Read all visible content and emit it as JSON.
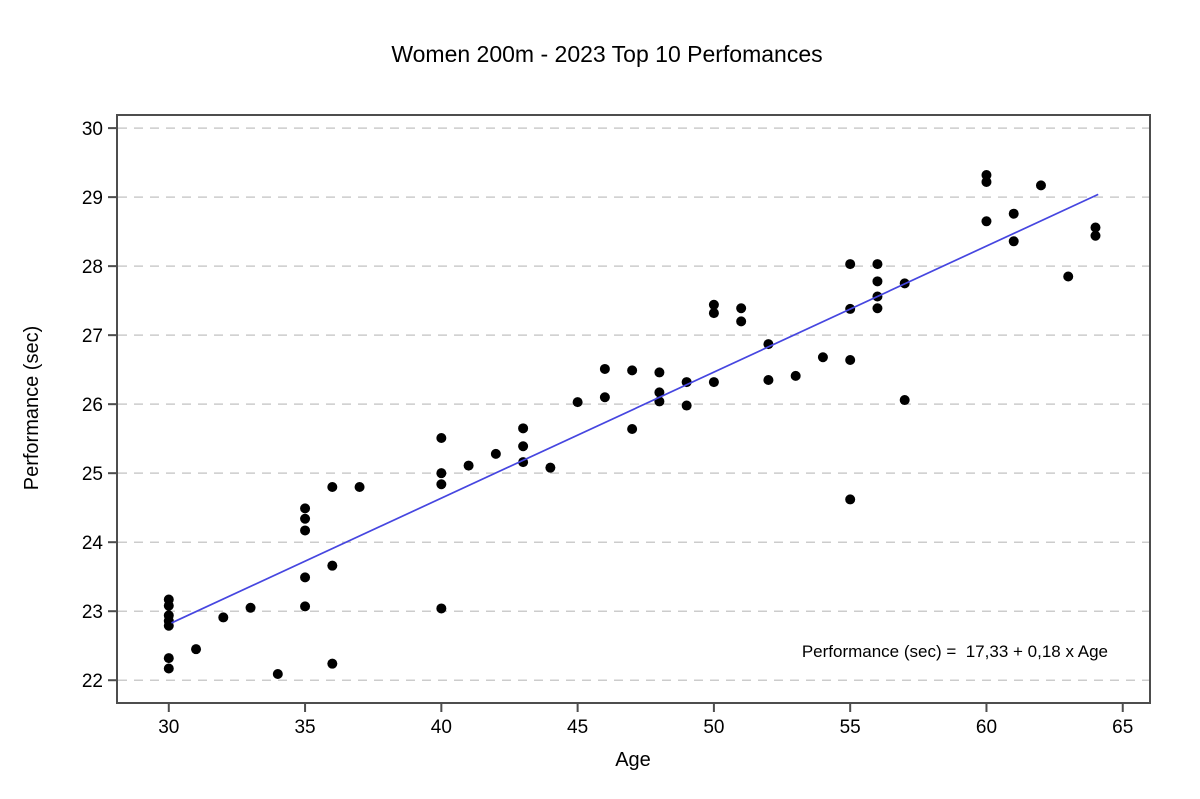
{
  "chart_data": {
    "type": "scatter",
    "title": "Women 200m - 2023 Top 10 Perfomances",
    "xlabel": "Age",
    "ylabel": "Performance (sec)",
    "xlim": [
      28.1,
      66.0
    ],
    "ylim": [
      21.67,
      30.19
    ],
    "xticks": [
      30,
      35,
      40,
      45,
      50,
      55,
      60,
      65
    ],
    "yticks": [
      22,
      23,
      24,
      25,
      26,
      27,
      28,
      29,
      30
    ],
    "grid": {
      "horizontal": true,
      "vertical": false,
      "style": "dashed",
      "color": "#cccccc"
    },
    "legend_position": "none",
    "frame_color": "#4d4d4d",
    "point_color": "#000000",
    "point_radius": 5,
    "points": [
      [
        30,
        23.17
      ],
      [
        30,
        23.08
      ],
      [
        30,
        22.94
      ],
      [
        30,
        22.86
      ],
      [
        30,
        22.79
      ],
      [
        30,
        22.32
      ],
      [
        30,
        22.17
      ],
      [
        31,
        22.45
      ],
      [
        32,
        22.91
      ],
      [
        33,
        23.05
      ],
      [
        34,
        22.09
      ],
      [
        35,
        24.49
      ],
      [
        35,
        24.34
      ],
      [
        35,
        24.17
      ],
      [
        35,
        23.49
      ],
      [
        35,
        23.07
      ],
      [
        36,
        24.8
      ],
      [
        36,
        23.66
      ],
      [
        36,
        22.24
      ],
      [
        37,
        24.8
      ],
      [
        40,
        25.51
      ],
      [
        40,
        25.0
      ],
      [
        40,
        24.84
      ],
      [
        40,
        23.04
      ],
      [
        41,
        25.11
      ],
      [
        42,
        25.28
      ],
      [
        43,
        25.65
      ],
      [
        43,
        25.39
      ],
      [
        43,
        25.16
      ],
      [
        44,
        25.08
      ],
      [
        45,
        26.03
      ],
      [
        46,
        26.51
      ],
      [
        46,
        26.1
      ],
      [
        47,
        26.49
      ],
      [
        47,
        25.64
      ],
      [
        48,
        26.46
      ],
      [
        48,
        26.17
      ],
      [
        48,
        26.04
      ],
      [
        49,
        26.32
      ],
      [
        49,
        25.98
      ],
      [
        50,
        27.44
      ],
      [
        50,
        27.32
      ],
      [
        50,
        26.32
      ],
      [
        51,
        27.39
      ],
      [
        51,
        27.2
      ],
      [
        52,
        26.87
      ],
      [
        52,
        26.35
      ],
      [
        53,
        26.41
      ],
      [
        54,
        26.68
      ],
      [
        55,
        28.03
      ],
      [
        55,
        27.38
      ],
      [
        55,
        26.64
      ],
      [
        55,
        24.62
      ],
      [
        56,
        28.03
      ],
      [
        56,
        27.78
      ],
      [
        56,
        27.56
      ],
      [
        56,
        27.39
      ],
      [
        57,
        27.75
      ],
      [
        57,
        26.06
      ],
      [
        60,
        29.32
      ],
      [
        60,
        29.22
      ],
      [
        60,
        28.65
      ],
      [
        61,
        28.76
      ],
      [
        61,
        28.36
      ],
      [
        62,
        29.17
      ],
      [
        63,
        27.85
      ],
      [
        64,
        28.56
      ],
      [
        64,
        28.44
      ]
    ],
    "trend_line": {
      "color": "#4646e0",
      "x_start": 30.1,
      "y_start": 22.83,
      "x_end": 64.1,
      "y_end": 29.04,
      "equation_text": "Performance (sec) =  17,33 + 0,18 x Age"
    }
  }
}
